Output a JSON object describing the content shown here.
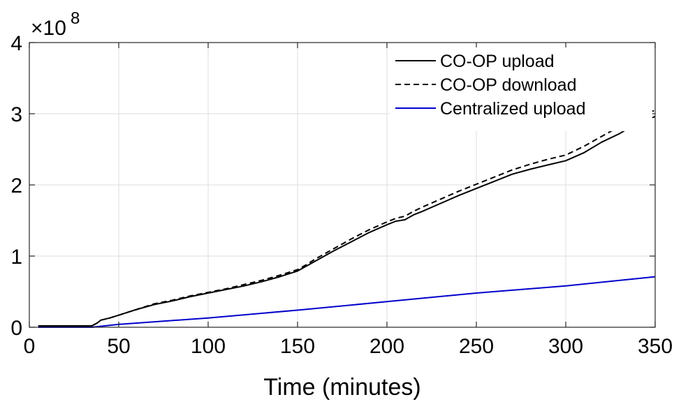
{
  "chart_data": {
    "type": "line",
    "title": "",
    "xlabel": "Time (minutes)",
    "ylabel": "",
    "xlim": [
      0,
      350
    ],
    "ylim": [
      0,
      4
    ],
    "y_multiplier_label": "×10",
    "y_multiplier_exponent": "8",
    "xticks": [
      0,
      50,
      100,
      150,
      200,
      250,
      300,
      350
    ],
    "yticks": [
      0,
      1,
      2,
      3,
      4
    ],
    "grid": true,
    "legend_position": "top-right",
    "series": [
      {
        "name": "CO-OP upload",
        "color": "#000000",
        "dash": "solid",
        "x": [
          5,
          10,
          20,
          30,
          35,
          38,
          40,
          45,
          50,
          55,
          60,
          70,
          80,
          90,
          100,
          110,
          120,
          130,
          140,
          150,
          155,
          160,
          170,
          180,
          190,
          200,
          205,
          210,
          215,
          220,
          230,
          240,
          250,
          260,
          270,
          280,
          290,
          300,
          310,
          320,
          330,
          340,
          350
        ],
        "y": [
          0.02,
          0.02,
          0.02,
          0.02,
          0.02,
          0.06,
          0.1,
          0.13,
          0.17,
          0.21,
          0.25,
          0.32,
          0.37,
          0.43,
          0.48,
          0.53,
          0.58,
          0.64,
          0.71,
          0.79,
          0.86,
          0.93,
          1.07,
          1.2,
          1.33,
          1.44,
          1.49,
          1.51,
          1.58,
          1.63,
          1.74,
          1.85,
          1.95,
          2.05,
          2.15,
          2.22,
          2.28,
          2.34,
          2.45,
          2.6,
          2.72,
          2.87,
          2.96
        ]
      },
      {
        "name": "CO-OP download",
        "color": "#000000",
        "dash": "dashed",
        "x": [
          5,
          10,
          20,
          30,
          35,
          38,
          40,
          45,
          50,
          55,
          60,
          70,
          80,
          90,
          100,
          110,
          120,
          130,
          140,
          150,
          155,
          160,
          170,
          180,
          190,
          200,
          205,
          210,
          215,
          220,
          230,
          240,
          250,
          260,
          270,
          280,
          290,
          300,
          310,
          320,
          330,
          340,
          350
        ],
        "y": [
          0.02,
          0.02,
          0.02,
          0.02,
          0.02,
          0.06,
          0.1,
          0.13,
          0.17,
          0.21,
          0.25,
          0.33,
          0.38,
          0.44,
          0.49,
          0.54,
          0.6,
          0.66,
          0.73,
          0.81,
          0.88,
          0.96,
          1.1,
          1.24,
          1.37,
          1.48,
          1.53,
          1.56,
          1.63,
          1.69,
          1.8,
          1.91,
          2.01,
          2.11,
          2.21,
          2.29,
          2.36,
          2.42,
          2.54,
          2.68,
          2.82,
          2.95,
          3.05
        ]
      },
      {
        "name": "Centralized upload",
        "color": "#0000cc",
        "dash": "solid",
        "x": [
          5,
          10,
          20,
          30,
          35,
          50,
          100,
          150,
          200,
          250,
          300,
          350
        ],
        "y": [
          0.0,
          0.0,
          0.0,
          0.0,
          0.0,
          0.04,
          0.13,
          0.24,
          0.36,
          0.48,
          0.58,
          0.71
        ]
      }
    ]
  }
}
